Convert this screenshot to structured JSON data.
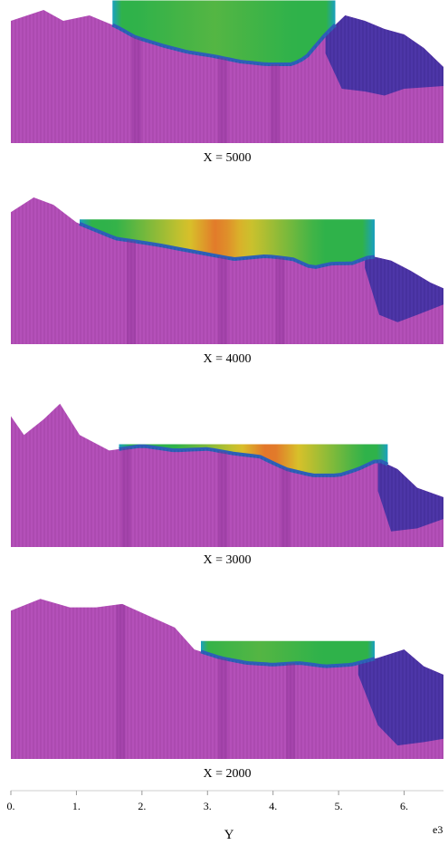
{
  "chart_data": {
    "type": "area",
    "xlabel": "Y",
    "x_exponent_label": "e3",
    "xlim": [
      0,
      6.6
    ],
    "ticks": [
      {
        "value": 0,
        "label": "0."
      },
      {
        "value": 1,
        "label": "1."
      },
      {
        "value": 2,
        "label": "2."
      },
      {
        "value": 3,
        "label": "3."
      },
      {
        "value": 4,
        "label": "4."
      },
      {
        "value": 5,
        "label": "5."
      },
      {
        "value": 6,
        "label": "6."
      }
    ],
    "panels": [
      {
        "caption": "X = 5000",
        "terrain": [
          [
            0,
            0.9
          ],
          [
            0.5,
            0.98
          ],
          [
            0.8,
            0.9
          ],
          [
            1.2,
            0.94
          ],
          [
            1.6,
            0.86
          ],
          [
            1.9,
            0.78
          ],
          [
            2.3,
            0.72
          ],
          [
            2.7,
            0.67
          ],
          [
            3.1,
            0.64
          ],
          [
            3.5,
            0.6
          ],
          [
            3.9,
            0.58
          ],
          [
            4.3,
            0.58
          ],
          [
            4.5,
            0.63
          ],
          [
            4.8,
            0.8
          ],
          [
            5.1,
            0.94
          ],
          [
            5.4,
            0.9
          ],
          [
            5.7,
            0.84
          ],
          [
            6.0,
            0.8
          ],
          [
            6.3,
            0.7
          ],
          [
            6.6,
            0.56
          ]
        ],
        "bedrock": [
          [
            0,
            0.9
          ],
          [
            1.0,
            0.9
          ],
          [
            1.5,
            0.86
          ],
          [
            2.0,
            0.8
          ],
          [
            3.0,
            0.74
          ],
          [
            4.0,
            0.7
          ],
          [
            4.5,
            0.66
          ],
          [
            4.8,
            0.66
          ],
          [
            5.05,
            0.4
          ],
          [
            5.4,
            0.38
          ],
          [
            5.7,
            0.35
          ],
          [
            6.0,
            0.4
          ],
          [
            6.6,
            0.42
          ]
        ],
        "lake": {
          "start": 1.55,
          "end": 4.95,
          "level": 1.05,
          "peak_position": 3.1,
          "peak_intensity": 0.1
        }
      },
      {
        "caption": "X = 4000",
        "terrain": [
          [
            0,
            0.9
          ],
          [
            0.35,
            1.0
          ],
          [
            0.65,
            0.95
          ],
          [
            1.0,
            0.83
          ],
          [
            1.6,
            0.72
          ],
          [
            2.2,
            0.68
          ],
          [
            2.8,
            0.63
          ],
          [
            3.4,
            0.58
          ],
          [
            3.9,
            0.6
          ],
          [
            4.3,
            0.58
          ],
          [
            4.6,
            0.52
          ],
          [
            4.9,
            0.55
          ],
          [
            5.2,
            0.55
          ],
          [
            5.5,
            0.6
          ],
          [
            5.8,
            0.57
          ],
          [
            6.1,
            0.5
          ],
          [
            6.4,
            0.42
          ],
          [
            6.6,
            0.38
          ]
        ],
        "bedrock": [
          [
            0,
            0.9
          ],
          [
            1.0,
            0.83
          ],
          [
            2.0,
            0.7
          ],
          [
            3.0,
            0.64
          ],
          [
            4.0,
            0.62
          ],
          [
            5.0,
            0.56
          ],
          [
            5.4,
            0.52
          ],
          [
            5.62,
            0.2
          ],
          [
            5.9,
            0.15
          ],
          [
            6.2,
            0.2
          ],
          [
            6.6,
            0.27
          ]
        ],
        "lake": {
          "start": 1.05,
          "end": 5.55,
          "level": 0.85,
          "peak_position": 3.15,
          "peak_intensity": 0.62
        }
      },
      {
        "caption": "X = 3000",
        "terrain": [
          [
            0,
            0.84
          ],
          [
            0.2,
            0.72
          ],
          [
            0.5,
            0.82
          ],
          [
            0.75,
            0.92
          ],
          [
            1.05,
            0.72
          ],
          [
            1.5,
            0.62
          ],
          [
            2.0,
            0.65
          ],
          [
            2.5,
            0.62
          ],
          [
            3.0,
            0.63
          ],
          [
            3.4,
            0.6
          ],
          [
            3.8,
            0.58
          ],
          [
            4.2,
            0.5
          ],
          [
            4.6,
            0.46
          ],
          [
            5.0,
            0.46
          ],
          [
            5.3,
            0.5
          ],
          [
            5.6,
            0.56
          ],
          [
            5.9,
            0.5
          ],
          [
            6.2,
            0.38
          ],
          [
            6.6,
            0.32
          ]
        ],
        "bedrock": [
          [
            0,
            0.84
          ],
          [
            1.0,
            0.72
          ],
          [
            2.0,
            0.64
          ],
          [
            3.0,
            0.6
          ],
          [
            4.0,
            0.56
          ],
          [
            4.7,
            0.5
          ],
          [
            5.3,
            0.46
          ],
          [
            5.6,
            0.36
          ],
          [
            5.8,
            0.1
          ],
          [
            6.2,
            0.12
          ],
          [
            6.6,
            0.18
          ]
        ],
        "lake": {
          "start": 1.65,
          "end": 5.75,
          "level": 0.66,
          "peak_position": 3.95,
          "peak_intensity": 0.65
        }
      },
      {
        "caption": "X = 2000",
        "terrain": [
          [
            0,
            0.88
          ],
          [
            0.45,
            0.95
          ],
          [
            0.9,
            0.9
          ],
          [
            1.3,
            0.9
          ],
          [
            1.7,
            0.92
          ],
          [
            2.1,
            0.85
          ],
          [
            2.5,
            0.78
          ],
          [
            2.8,
            0.65
          ],
          [
            3.2,
            0.6
          ],
          [
            3.6,
            0.57
          ],
          [
            4.0,
            0.56
          ],
          [
            4.4,
            0.57
          ],
          [
            4.8,
            0.55
          ],
          [
            5.2,
            0.56
          ],
          [
            5.6,
            0.6
          ],
          [
            6.0,
            0.65
          ],
          [
            6.3,
            0.55
          ],
          [
            6.6,
            0.5
          ]
        ],
        "bedrock": [
          [
            0,
            0.88
          ],
          [
            1.0,
            0.89
          ],
          [
            2.0,
            0.86
          ],
          [
            2.6,
            0.74
          ],
          [
            3.0,
            0.66
          ],
          [
            4.0,
            0.6
          ],
          [
            5.0,
            0.56
          ],
          [
            5.3,
            0.5
          ],
          [
            5.6,
            0.2
          ],
          [
            5.9,
            0.08
          ],
          [
            6.3,
            0.1
          ],
          [
            6.6,
            0.12
          ]
        ],
        "lake": {
          "start": 2.9,
          "end": 5.55,
          "level": 0.7,
          "peak_position": 3.8,
          "peak_intensity": 0.1
        }
      }
    ]
  },
  "colors": {
    "terrain": "#b34db8",
    "terrain_dark": "#8a2f93",
    "bedrock": "#4a33a6",
    "bedrock_dark": "#2f1f82",
    "lake_base": "#2fb24a",
    "lake_mid": "#d8c22a",
    "lake_hot": "#e8502a",
    "lake_edge": "#1aa0c0",
    "lake_bottom": "#2c5fb8"
  }
}
